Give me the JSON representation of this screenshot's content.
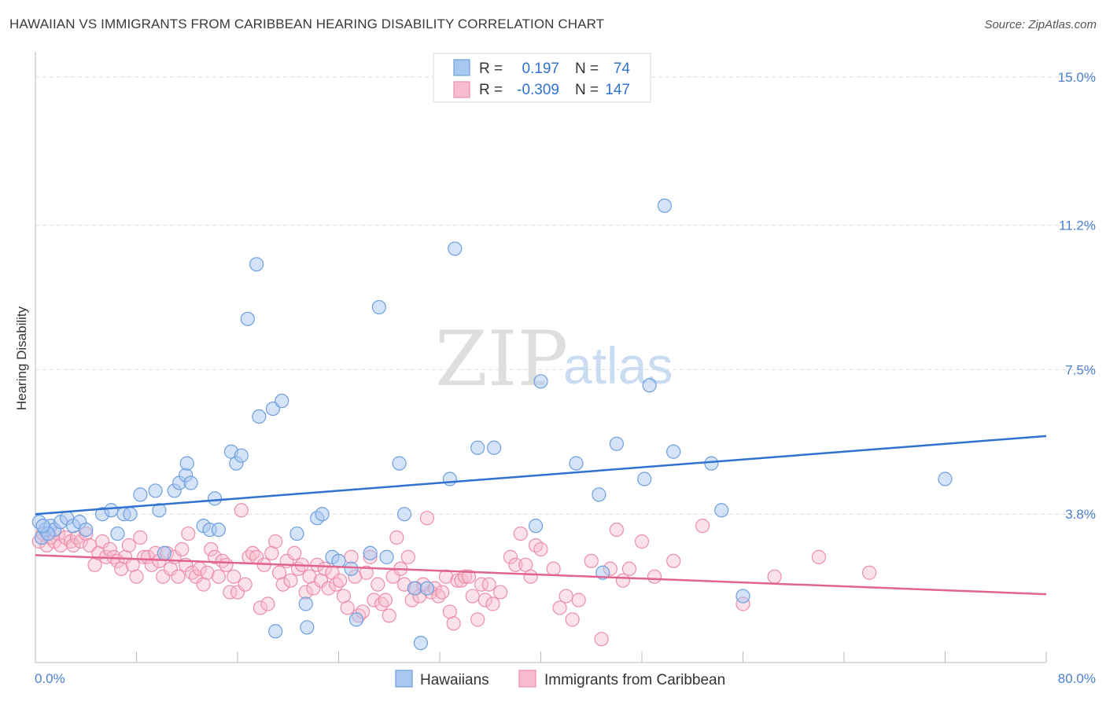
{
  "title": "HAWAIIAN VS IMMIGRANTS FROM CARIBBEAN HEARING DISABILITY CORRELATION CHART",
  "source": "Source: ZipAtlas.com",
  "watermark": {
    "zip": "ZIP",
    "atlas": "atlas"
  },
  "legend": {
    "rows": [
      {
        "r_label": "R =",
        "r_value": "0.197",
        "n_label": "N =",
        "n_value": "74"
      },
      {
        "r_label": "R =",
        "r_value": "-0.309",
        "n_label": "N =",
        "n_value": "147"
      }
    ]
  },
  "bottom_legend": [
    "Hawaiians",
    "Immigrants from Caribbean"
  ],
  "colors": {
    "blue_fill": "#a9c8ef",
    "blue_stroke": "#6d9fe0",
    "blue_line": "#2f72cf",
    "pink_fill": "#f6bccd",
    "pink_stroke": "#ec8eab",
    "pink_line": "#e0648f",
    "tick_text": "#4a7fd0"
  },
  "chart_data": {
    "type": "scatter",
    "title": "HAWAIIAN VS IMMIGRANTS FROM CARIBBEAN HEARING DISABILITY CORRELATION CHART",
    "xlabel": "",
    "ylabel": "Hearing Disability",
    "xlim": [
      0,
      80
    ],
    "ylim": [
      0,
      15.5
    ],
    "x_tick_labels": [
      "0.0%",
      "80.0%"
    ],
    "y_ticks": [
      3.8,
      7.5,
      11.2,
      15.0
    ],
    "y_tick_labels": [
      "3.8%",
      "7.5%",
      "11.2%",
      "15.0%"
    ],
    "grid": "horizontal dashed",
    "legend_position": "top-center",
    "series": [
      {
        "name": "Hawaiians",
        "r": 0.197,
        "n": 74,
        "trend": [
          [
            0,
            3.8
          ],
          [
            80,
            5.8
          ]
        ],
        "points": [
          [
            0.3,
            3.6
          ],
          [
            0.5,
            3.2
          ],
          [
            0.8,
            3.4
          ],
          [
            1.2,
            3.5
          ],
          [
            1.5,
            3.4
          ],
          [
            2.0,
            3.6
          ],
          [
            2.5,
            3.7
          ],
          [
            3.0,
            3.5
          ],
          [
            3.5,
            3.6
          ],
          [
            4.0,
            3.4
          ],
          [
            5.3,
            3.8
          ],
          [
            6.0,
            3.9
          ],
          [
            6.5,
            3.3
          ],
          [
            7.0,
            3.8
          ],
          [
            7.5,
            3.8
          ],
          [
            8.3,
            4.3
          ],
          [
            9.5,
            4.4
          ],
          [
            9.8,
            3.9
          ],
          [
            10.2,
            2.8
          ],
          [
            11.0,
            4.4
          ],
          [
            11.4,
            4.6
          ],
          [
            11.9,
            4.8
          ],
          [
            12.0,
            5.1
          ],
          [
            12.3,
            4.6
          ],
          [
            13.3,
            3.5
          ],
          [
            13.8,
            3.4
          ],
          [
            14.2,
            4.2
          ],
          [
            14.5,
            3.4
          ],
          [
            15.5,
            5.4
          ],
          [
            15.9,
            5.1
          ],
          [
            16.3,
            5.3
          ],
          [
            16.8,
            8.8
          ],
          [
            17.5,
            10.2
          ],
          [
            17.7,
            6.3
          ],
          [
            18.8,
            6.5
          ],
          [
            19.5,
            6.7
          ],
          [
            19.0,
            0.8
          ],
          [
            20.7,
            3.3
          ],
          [
            21.5,
            0.9
          ],
          [
            21.4,
            1.5
          ],
          [
            22.3,
            3.7
          ],
          [
            22.7,
            3.8
          ],
          [
            23.5,
            2.7
          ],
          [
            24.0,
            2.6
          ],
          [
            25.0,
            2.4
          ],
          [
            25.4,
            1.1
          ],
          [
            26.5,
            2.8
          ],
          [
            27.2,
            9.1
          ],
          [
            27.8,
            2.7
          ],
          [
            28.8,
            5.1
          ],
          [
            29.2,
            3.8
          ],
          [
            30.0,
            1.9
          ],
          [
            30.5,
            0.5
          ],
          [
            31.0,
            1.9
          ],
          [
            32.8,
            4.7
          ],
          [
            33.2,
            10.6
          ],
          [
            35.0,
            5.5
          ],
          [
            36.3,
            5.5
          ],
          [
            39.6,
            3.5
          ],
          [
            40.0,
            7.2
          ],
          [
            42.8,
            5.1
          ],
          [
            44.6,
            4.3
          ],
          [
            44.9,
            2.3
          ],
          [
            46.0,
            5.6
          ],
          [
            48.2,
            4.7
          ],
          [
            48.6,
            7.1
          ],
          [
            49.8,
            11.7
          ],
          [
            50.5,
            5.4
          ],
          [
            53.5,
            5.1
          ],
          [
            54.3,
            3.9
          ],
          [
            56.0,
            1.7
          ],
          [
            72.0,
            4.7
          ],
          [
            1.0,
            3.3
          ],
          [
            0.6,
            3.5
          ]
        ]
      },
      {
        "name": "Immigrants from Caribbean",
        "r": -0.309,
        "n": 147,
        "trend": [
          [
            0,
            2.75
          ],
          [
            80,
            1.75
          ]
        ],
        "points": [
          [
            0.3,
            3.1
          ],
          [
            0.6,
            3.3
          ],
          [
            0.9,
            3.0
          ],
          [
            1.2,
            3.2
          ],
          [
            1.5,
            3.1
          ],
          [
            1.8,
            3.3
          ],
          [
            2.0,
            3.0
          ],
          [
            2.4,
            3.2
          ],
          [
            2.8,
            3.1
          ],
          [
            3.0,
            3.0
          ],
          [
            3.3,
            3.2
          ],
          [
            3.6,
            3.1
          ],
          [
            4.0,
            3.3
          ],
          [
            4.3,
            3.0
          ],
          [
            4.7,
            2.5
          ],
          [
            5.0,
            2.8
          ],
          [
            5.3,
            3.1
          ],
          [
            5.6,
            2.7
          ],
          [
            5.9,
            2.9
          ],
          [
            6.2,
            2.7
          ],
          [
            6.5,
            2.6
          ],
          [
            6.8,
            2.4
          ],
          [
            7.1,
            2.7
          ],
          [
            7.4,
            3.0
          ],
          [
            7.7,
            2.5
          ],
          [
            8.0,
            2.2
          ],
          [
            8.3,
            3.2
          ],
          [
            8.6,
            2.7
          ],
          [
            8.9,
            2.7
          ],
          [
            9.2,
            2.5
          ],
          [
            9.5,
            2.8
          ],
          [
            9.8,
            2.6
          ],
          [
            10.1,
            2.2
          ],
          [
            10.4,
            2.8
          ],
          [
            10.7,
            2.4
          ],
          [
            11.0,
            2.7
          ],
          [
            11.3,
            2.2
          ],
          [
            11.6,
            2.9
          ],
          [
            11.9,
            2.5
          ],
          [
            12.1,
            3.3
          ],
          [
            12.4,
            2.3
          ],
          [
            12.7,
            2.2
          ],
          [
            13.0,
            2.4
          ],
          [
            13.3,
            2.0
          ],
          [
            13.6,
            2.3
          ],
          [
            13.9,
            2.9
          ],
          [
            14.2,
            2.7
          ],
          [
            14.5,
            2.2
          ],
          [
            14.8,
            2.6
          ],
          [
            15.1,
            2.5
          ],
          [
            15.4,
            1.8
          ],
          [
            15.7,
            2.2
          ],
          [
            16.0,
            1.8
          ],
          [
            16.3,
            3.9
          ],
          [
            16.6,
            2.0
          ],
          [
            16.9,
            2.7
          ],
          [
            17.2,
            2.8
          ],
          [
            17.5,
            2.7
          ],
          [
            17.8,
            1.4
          ],
          [
            18.1,
            2.5
          ],
          [
            18.4,
            1.5
          ],
          [
            18.7,
            2.8
          ],
          [
            19.0,
            3.1
          ],
          [
            19.3,
            2.3
          ],
          [
            19.6,
            2.0
          ],
          [
            19.9,
            2.6
          ],
          [
            20.2,
            2.1
          ],
          [
            20.5,
            2.8
          ],
          [
            20.8,
            2.4
          ],
          [
            21.1,
            2.5
          ],
          [
            21.4,
            1.8
          ],
          [
            21.7,
            2.2
          ],
          [
            22.0,
            1.9
          ],
          [
            22.3,
            2.5
          ],
          [
            22.6,
            2.1
          ],
          [
            22.9,
            2.4
          ],
          [
            23.2,
            1.9
          ],
          [
            23.5,
            2.3
          ],
          [
            23.8,
            2.0
          ],
          [
            24.1,
            2.1
          ],
          [
            24.4,
            1.7
          ],
          [
            24.7,
            1.4
          ],
          [
            25.0,
            2.7
          ],
          [
            25.3,
            2.2
          ],
          [
            25.6,
            1.2
          ],
          [
            25.9,
            1.3
          ],
          [
            26.2,
            2.3
          ],
          [
            26.5,
            2.7
          ],
          [
            26.8,
            1.6
          ],
          [
            27.1,
            2.0
          ],
          [
            27.4,
            1.5
          ],
          [
            27.7,
            1.6
          ],
          [
            28.0,
            1.2
          ],
          [
            28.3,
            2.2
          ],
          [
            28.6,
            3.2
          ],
          [
            28.9,
            2.4
          ],
          [
            29.2,
            2.0
          ],
          [
            29.5,
            2.7
          ],
          [
            29.8,
            1.6
          ],
          [
            30.1,
            1.9
          ],
          [
            30.4,
            1.7
          ],
          [
            30.7,
            2.0
          ],
          [
            31.0,
            3.7
          ],
          [
            31.3,
            1.8
          ],
          [
            31.6,
            1.9
          ],
          [
            31.9,
            1.7
          ],
          [
            32.2,
            1.8
          ],
          [
            32.5,
            2.2
          ],
          [
            32.8,
            1.3
          ],
          [
            33.1,
            1.0
          ],
          [
            33.4,
            2.1
          ],
          [
            33.7,
            2.1
          ],
          [
            34.0,
            2.2
          ],
          [
            34.3,
            2.2
          ],
          [
            34.6,
            1.7
          ],
          [
            35.0,
            1.1
          ],
          [
            35.3,
            2.0
          ],
          [
            35.6,
            1.6
          ],
          [
            35.9,
            2.0
          ],
          [
            36.2,
            1.5
          ],
          [
            36.8,
            1.8
          ],
          [
            37.6,
            2.7
          ],
          [
            38.0,
            2.5
          ],
          [
            38.4,
            3.3
          ],
          [
            38.8,
            2.5
          ],
          [
            39.2,
            2.2
          ],
          [
            39.6,
            3.0
          ],
          [
            40.0,
            2.9
          ],
          [
            41.0,
            2.4
          ],
          [
            41.5,
            1.4
          ],
          [
            42.0,
            1.7
          ],
          [
            42.5,
            1.1
          ],
          [
            43.0,
            1.6
          ],
          [
            44.0,
            2.6
          ],
          [
            44.8,
            0.6
          ],
          [
            45.5,
            2.4
          ],
          [
            46.0,
            3.4
          ],
          [
            46.5,
            2.1
          ],
          [
            47.0,
            2.4
          ],
          [
            48.0,
            3.1
          ],
          [
            49.0,
            2.2
          ],
          [
            50.5,
            2.6
          ],
          [
            52.8,
            3.5
          ],
          [
            56.0,
            1.5
          ],
          [
            58.5,
            2.2
          ],
          [
            62.0,
            2.7
          ],
          [
            66.0,
            2.3
          ]
        ]
      }
    ]
  }
}
